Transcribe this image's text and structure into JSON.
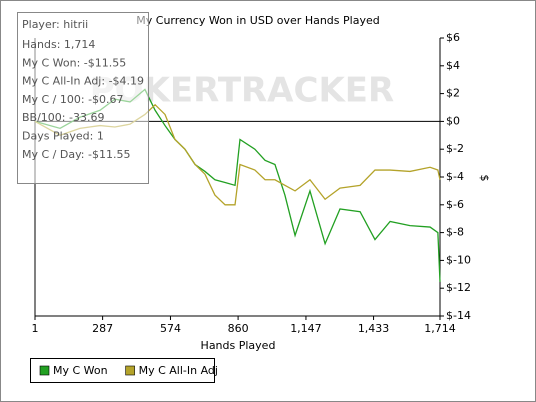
{
  "chart_data": {
    "type": "line",
    "title": "My Currency Won in USD over Hands Played",
    "xlabel": "Hands Played",
    "ylabel": "$",
    "watermark": "POKERTRACKER",
    "stats": [
      "Player: hitrii",
      "Hands: 1,714",
      "My C Won: -$11.55",
      "My C All-In Adj: -$4.19",
      "My C / 100: -$0.67",
      "BB/100: -33.69",
      "Days Played: 1",
      "My C / Day: -$11.55"
    ],
    "x": [
      1,
      107,
      191,
      276,
      339,
      403,
      466,
      509,
      551,
      593,
      635,
      678,
      720,
      762,
      805,
      847,
      868,
      931,
      974,
      1016,
      1058,
      1101,
      1164,
      1228,
      1291,
      1376,
      1439,
      1503,
      1587,
      1672,
      1705,
      1714
    ],
    "series": [
      {
        "name": "My C Won",
        "color": "#22a022",
        "values": [
          0,
          -0.5,
          0.3,
          0.8,
          1.6,
          1.4,
          2.3,
          0.8,
          -0.3,
          -1.3,
          -2,
          -3.1,
          -3.6,
          -4.2,
          -4.4,
          -4.6,
          -1.3,
          -2,
          -2.8,
          -3.1,
          -5.3,
          -8.2,
          -5,
          -8.8,
          -6.3,
          -6.5,
          -8.5,
          -7.2,
          -7.5,
          -7.6,
          -8,
          -11.55
        ]
      },
      {
        "name": "My C All-In Adj",
        "color": "#b4a32a",
        "values": [
          0,
          -1,
          -0.5,
          -0.3,
          -0.4,
          -0.2,
          0.5,
          1.2,
          0.5,
          -1.3,
          -2,
          -3.1,
          -3.8,
          -5.3,
          -6,
          -6,
          -3.1,
          -3.5,
          -4.2,
          -4.2,
          -4.6,
          -5,
          -4.2,
          -5.6,
          -4.8,
          -4.6,
          -3.5,
          -3.5,
          -3.6,
          -3.3,
          -3.5,
          -4.19
        ]
      }
    ],
    "xlim": [
      1,
      1714
    ],
    "xticks": [
      1,
      287,
      574,
      860,
      {
        "value": 1147,
        "label": "1,147"
      },
      {
        "value": 1433,
        "label": "1,433"
      },
      {
        "value": 1714,
        "label": "1,714"
      }
    ],
    "ylim": [
      -14,
      6
    ],
    "yticks": [
      {
        "value": 6,
        "label": "$6"
      },
      {
        "value": 4,
        "label": "$4"
      },
      {
        "value": 2,
        "label": "$2"
      },
      {
        "value": 0,
        "label": "$0"
      },
      {
        "value": -2,
        "label": "$-2"
      },
      {
        "value": -4,
        "label": "$-4"
      },
      {
        "value": -6,
        "label": "$-6"
      },
      {
        "value": -8,
        "label": "$-8"
      },
      {
        "value": -10,
        "label": "$-10"
      },
      {
        "value": -12,
        "label": "$-12"
      },
      {
        "value": -14,
        "label": "$-14"
      }
    ],
    "legend": "bottom-left"
  }
}
